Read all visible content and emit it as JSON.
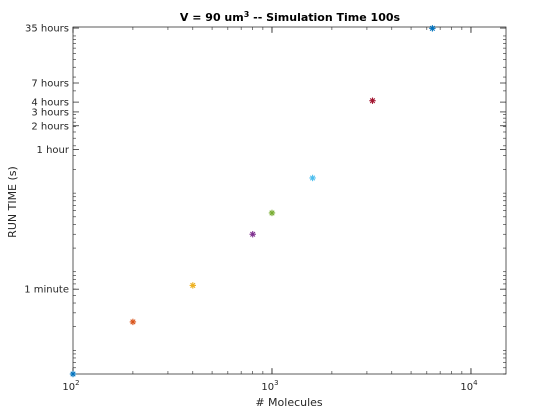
{
  "chart_data": {
    "type": "scatter",
    "title": {
      "prefix": "V = 90 um",
      "superscript": "3",
      "suffix": " -- Simulation Time 100s"
    },
    "xlabel": "# Molecules",
    "ylabel": "RUN TIME (s)",
    "x_scale": "log",
    "y_scale": "log",
    "xlim": [
      100,
      15000
    ],
    "ylim_seconds": [
      5,
      130000
    ],
    "grid": false,
    "marker": "asterisk",
    "x_ticks": [
      {
        "value": 100,
        "base": "10",
        "exp": "2"
      },
      {
        "value": 1000,
        "base": "10",
        "exp": "3"
      },
      {
        "value": 10000,
        "base": "10",
        "exp": "4"
      }
    ],
    "y_ticks": [
      {
        "value": 60,
        "label": "1 minute"
      },
      {
        "value": 3600,
        "label": "1 hour"
      },
      {
        "value": 7200,
        "label": "2 hours"
      },
      {
        "value": 10800,
        "label": "3 hours"
      },
      {
        "value": 14400,
        "label": "4 hours"
      },
      {
        "value": 25200,
        "label": "7 hours"
      },
      {
        "value": 126000,
        "label": "35 hours"
      }
    ],
    "points": [
      {
        "x": 100,
        "y": 5,
        "color": "#0072BD"
      },
      {
        "x": 200,
        "y": 23,
        "color": "#D95319"
      },
      {
        "x": 400,
        "y": 67,
        "color": "#EDB120"
      },
      {
        "x": 800,
        "y": 300,
        "color": "#7E2F8E"
      },
      {
        "x": 1000,
        "y": 560,
        "color": "#77AC30"
      },
      {
        "x": 1600,
        "y": 1560,
        "color": "#4DBEEE"
      },
      {
        "x": 3200,
        "y": 15000,
        "color": "#A2142F"
      },
      {
        "x": 6400,
        "y": 125000,
        "color": "#0072BD"
      }
    ]
  }
}
